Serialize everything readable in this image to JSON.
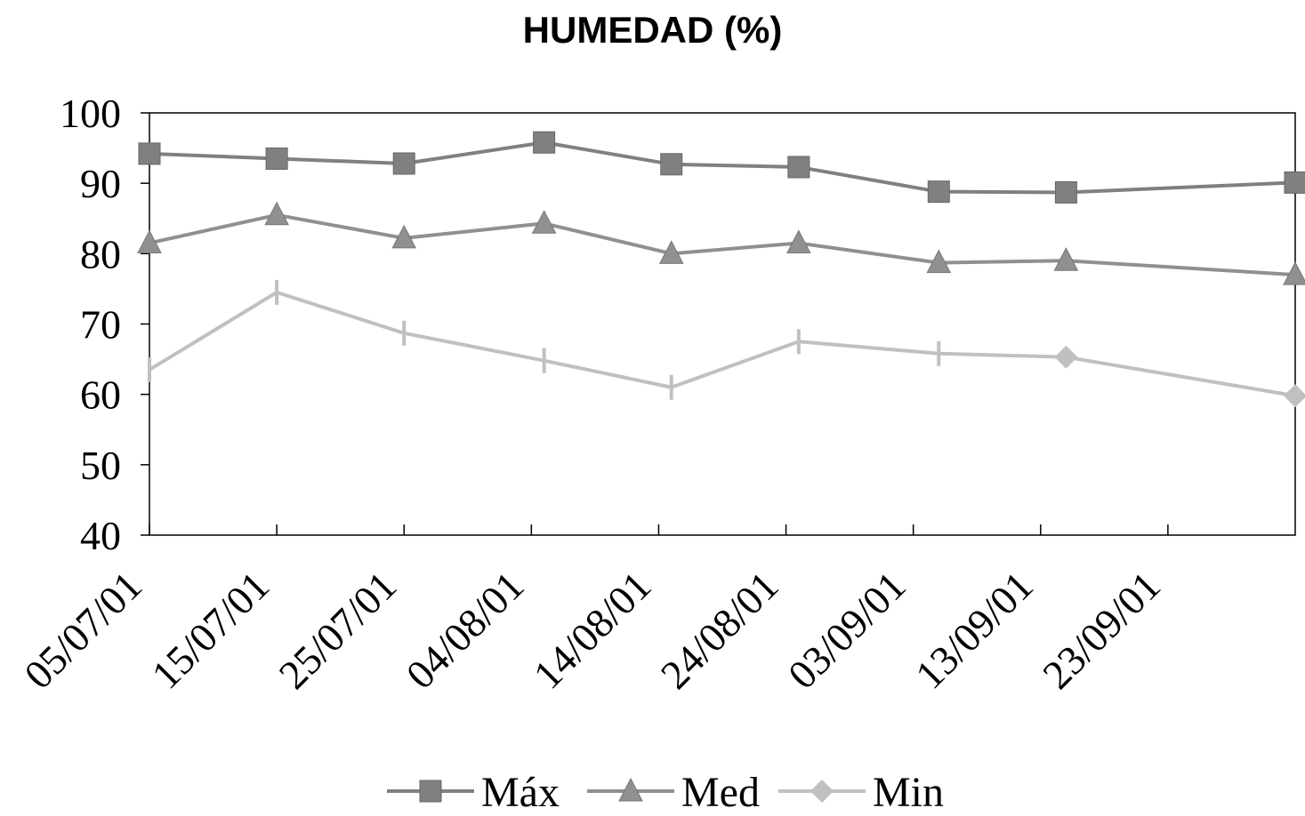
{
  "chart_data": {
    "type": "line",
    "title": "HUMEDAD (%)",
    "xlabel": "",
    "ylabel": "",
    "ylim": [
      40,
      100
    ],
    "yticks": [
      40,
      50,
      60,
      70,
      80,
      90,
      100
    ],
    "xlim": [
      "05/07/01",
      "03/10/01"
    ],
    "xticks": [
      "05/07/01",
      "15/07/01",
      "25/07/01",
      "04/08/01",
      "14/08/01",
      "24/08/01",
      "03/09/01",
      "13/09/01",
      "23/09/01"
    ],
    "x": [
      "05/07/01",
      "15/07/01",
      "25/07/01",
      "05/08/01",
      "15/08/01",
      "25/08/01",
      "05/09/01",
      "15/09/01",
      "03/10/01"
    ],
    "series": [
      {
        "name": "Máx",
        "values": [
          94.2,
          93.5,
          92.8,
          95.8,
          92.7,
          92.3,
          88.8,
          88.7,
          90.1
        ],
        "color": "#808080",
        "marker": "square"
      },
      {
        "name": "Med",
        "values": [
          81.5,
          85.5,
          82.2,
          84.3,
          80.0,
          81.5,
          78.7,
          79.0,
          77.0
        ],
        "color": "#909090",
        "marker": "triangle"
      },
      {
        "name": "Min",
        "values": [
          63.5,
          74.5,
          68.7,
          64.8,
          61.0,
          67.5,
          65.8,
          65.3,
          59.8
        ],
        "color": "#c0c0c0",
        "marker": "plus"
      }
    ],
    "legend": "bottom",
    "grid": false
  }
}
